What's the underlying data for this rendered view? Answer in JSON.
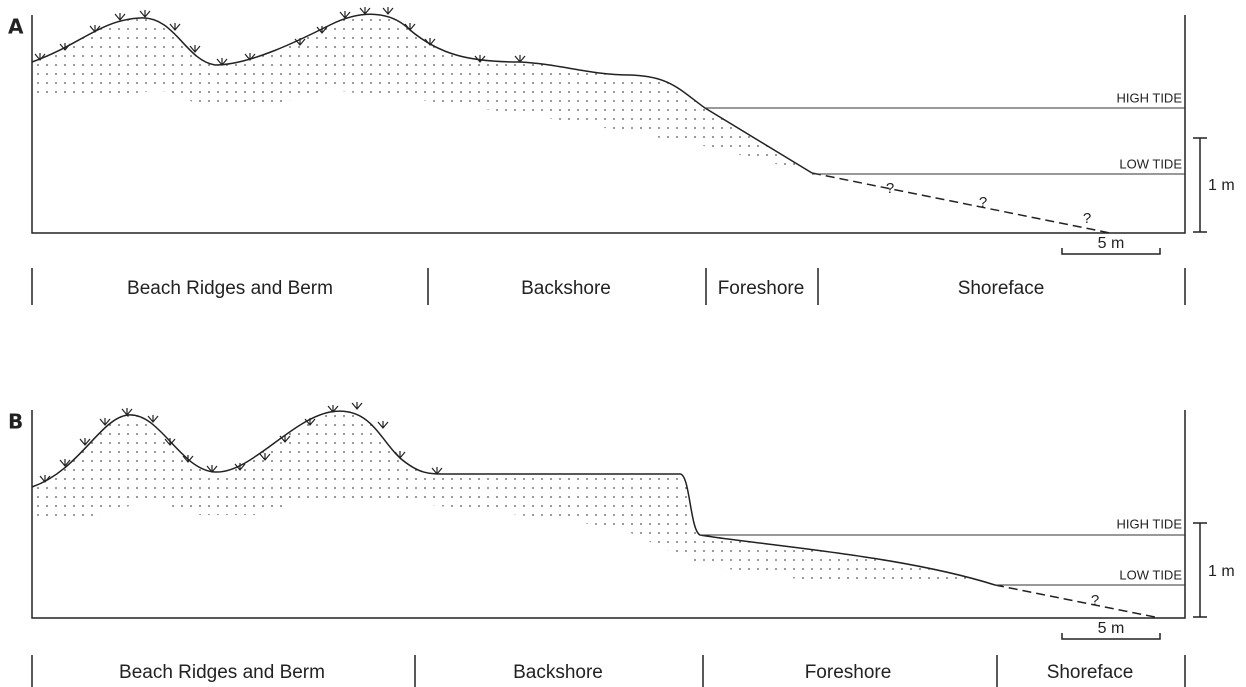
{
  "panels": [
    {
      "label": "A",
      "high_tide": "HIGH TIDE",
      "low_tide": "LOW TIDE",
      "vertical_scale": "1 m",
      "horizontal_scale": "5 m",
      "uncertain": [
        "?",
        "?",
        "?"
      ],
      "zones": [
        "Beach Ridges and Berm",
        "Backshore",
        "Foreshore",
        "Shoreface"
      ]
    },
    {
      "label": "B",
      "high_tide": "HIGH TIDE",
      "low_tide": "LOW TIDE",
      "vertical_scale": "1 m",
      "horizontal_scale": "5 m",
      "uncertain": [
        "?"
      ],
      "zones": [
        "Beach Ridges and Berm",
        "Backshore",
        "Foreshore",
        "Shoreface"
      ]
    }
  ]
}
